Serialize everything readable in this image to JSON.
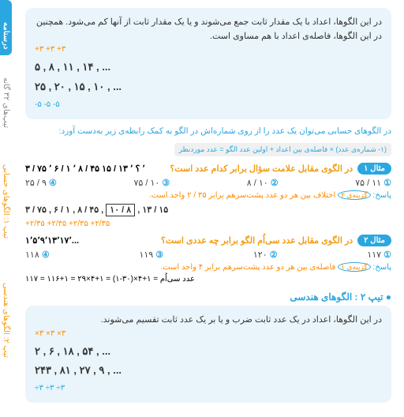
{
  "sidebar": {
    "main_tab": "درسنامه",
    "note1": "تیپ‌های ۳۲ گانه",
    "note2": "تیپ ۱: الگوهای حسابی",
    "note3": "تیپ ۲: الگوهای هندسی"
  },
  "intro": {
    "text1": "در این الگوها، اعداد با یک مقدار ثابت جمع می‌شوند و یا یک مقدار ثابت از آنها کم می‌شود. همچنین در این الگوها، فاصله‌ی اعداد با هم مساوی است.",
    "seq1_arrows": "+۳   +۳   +۳",
    "seq1": "۵ , ۸ , ۱۱ , ۱۴ , ...",
    "seq2": "۲۵ , ۲۰ , ۱۵ , ۱۰ , ...",
    "seq2_arrows": "-۵   -۵   -۵"
  },
  "formula": {
    "line1": "در الگوهای حسابی می‌توان یک عدد را از روی شماره‌اش در الگو به کمک رابطه‌ی زیر به‌دست آورد:",
    "line2": "(۱- شماره‌ی عدد) × فاصله‌ی بین اعداد + اولین عدد الگو = عدد موردنظر"
  },
  "ex1": {
    "badge": "مثال ۱",
    "q": "در الگوی مقابل علامت سؤال برابر کدام عدد است؟",
    "seq_title": "۳ / ۷۵ ٬ ۶ / ۱ ٬ ۸ / ۴۵ ٬ ؟ ٬ ۱۳ / ۱۵",
    "opts": [
      "۱۱ / ۷۵",
      "۱۰ / ۸",
      "۱۰ / ۷۵",
      "۹ / ۲۵"
    ],
    "ans_label": "پاسخ:",
    "ans_key": "گزینه‌ی ۲",
    "ans_text": "اختلاف بین هر دو عدد پشت‌سرهم برابر ۳۵ / ۲ واحد است.",
    "work_arrows": "+۲/۳۵   +۲/۳۵   +۲/۳۵   +۲/۳۵",
    "work": "۳ / ۷۵  ,  ۶ / ۱  ,  ۸ / ۴۵  ,",
    "boxed": "۱۰ / ۸",
    "work_tail": ",  ۱۳ / ۱۵"
  },
  "ex2": {
    "badge": "مثال ۲",
    "q": "در الگوی مقابل عدد سی‌اُم الگو برابر چه عددی است؟",
    "seq_title": "۱٬۵٬۹٬۱۳٬۱۷٬...",
    "opts": [
      "۱۱۷",
      "۱۲۰",
      "۱۱۹",
      "۱۱۸"
    ],
    "ans_label": "پاسخ:",
    "ans_key": "گزینه‌ی ۱",
    "ans_text": "فاصله‌ی بین هر دو عدد پشت‌سرهم برابر ۴ واحد است.",
    "calc": "عدد سی‌اُم = ۱+۴×(۳۰-۱) = ۱+۴×۲۹ = ۱+۱۱۶ = ۱۱۷"
  },
  "type2": {
    "title": "● تیپ ۲ : الگوهای هندسی",
    "text": "در این الگوها، اعداد در یک عدد ثابت ضرب و یا بر یک عدد ثابت تقسیم می‌شوند.",
    "seq1_arrows": "×۳   ×۳   ×۳",
    "seq1": "۲ , ۶ , ۱۸ , ۵۴ , ...",
    "seq2": "۲۴۳ , ۸۱ , ۲۷ , ۹ , ...",
    "seq2_arrows": "÷۳   ÷۳   ÷۳"
  }
}
